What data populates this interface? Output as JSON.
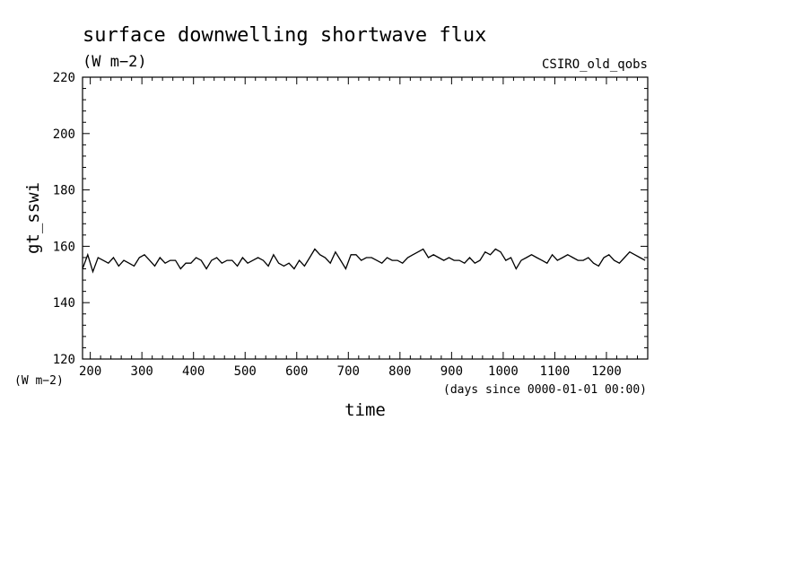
{
  "figure": {
    "title": "surface downwelling shortwave flux",
    "units": "(W m−2)",
    "source": "CSIRO_old_qobs",
    "y_unit_label": "(W m−2)",
    "x_unit_label": "(days since 0000-01-01 00:00)"
  },
  "chart_data": {
    "type": "line",
    "title": "surface downwelling shortwave flux",
    "xlabel": "time",
    "ylabel": "gt_sswi",
    "xlim": [
      185,
      1280
    ],
    "ylim": [
      120,
      220
    ],
    "x_ticks": [
      200,
      300,
      400,
      500,
      600,
      700,
      800,
      900,
      1000,
      1100,
      1200
    ],
    "y_ticks": [
      120,
      140,
      160,
      180,
      200,
      220
    ],
    "grid": false,
    "series": [
      {
        "color": "#000000",
        "x": [
          185,
          195,
          205,
          215,
          225,
          235,
          245,
          255,
          265,
          275,
          285,
          295,
          305,
          315,
          325,
          335,
          345,
          355,
          365,
          375,
          385,
          395,
          405,
          415,
          425,
          435,
          445,
          455,
          465,
          475,
          485,
          495,
          505,
          515,
          525,
          535,
          545,
          555,
          565,
          575,
          585,
          595,
          605,
          615,
          625,
          635,
          645,
          655,
          665,
          675,
          685,
          695,
          705,
          715,
          725,
          735,
          745,
          755,
          765,
          775,
          785,
          795,
          805,
          815,
          825,
          835,
          845,
          855,
          865,
          875,
          885,
          895,
          905,
          915,
          925,
          935,
          945,
          955,
          965,
          975,
          985,
          995,
          1005,
          1015,
          1025,
          1035,
          1045,
          1055,
          1065,
          1075,
          1085,
          1095,
          1105,
          1115,
          1125,
          1135,
          1145,
          1155,
          1165,
          1175,
          1185,
          1195,
          1205,
          1215,
          1225,
          1235,
          1245,
          1255,
          1265,
          1275
        ],
        "values": [
          152,
          157,
          151,
          156,
          155,
          154,
          156,
          153,
          155,
          154,
          153,
          156,
          157,
          155,
          153,
          156,
          154,
          155,
          155,
          152,
          154,
          154,
          156,
          155,
          152,
          155,
          156,
          154,
          155,
          155,
          153,
          156,
          154,
          155,
          156,
          155,
          153,
          157,
          154,
          153,
          154,
          152,
          155,
          153,
          156,
          159,
          157,
          156,
          154,
          158,
          155,
          152,
          157,
          157,
          155,
          156,
          156,
          155,
          154,
          156,
          155,
          155,
          154,
          156,
          157,
          158,
          159,
          156,
          157,
          156,
          155,
          156,
          155,
          155,
          154,
          156,
          154,
          155,
          158,
          157,
          159,
          158,
          155,
          156,
          152,
          155,
          156,
          157,
          156,
          155,
          154,
          157,
          155,
          156,
          157,
          156,
          155,
          155,
          156,
          154,
          153,
          156,
          157,
          155,
          154,
          156,
          158,
          157,
          156,
          155
        ]
      }
    ]
  }
}
